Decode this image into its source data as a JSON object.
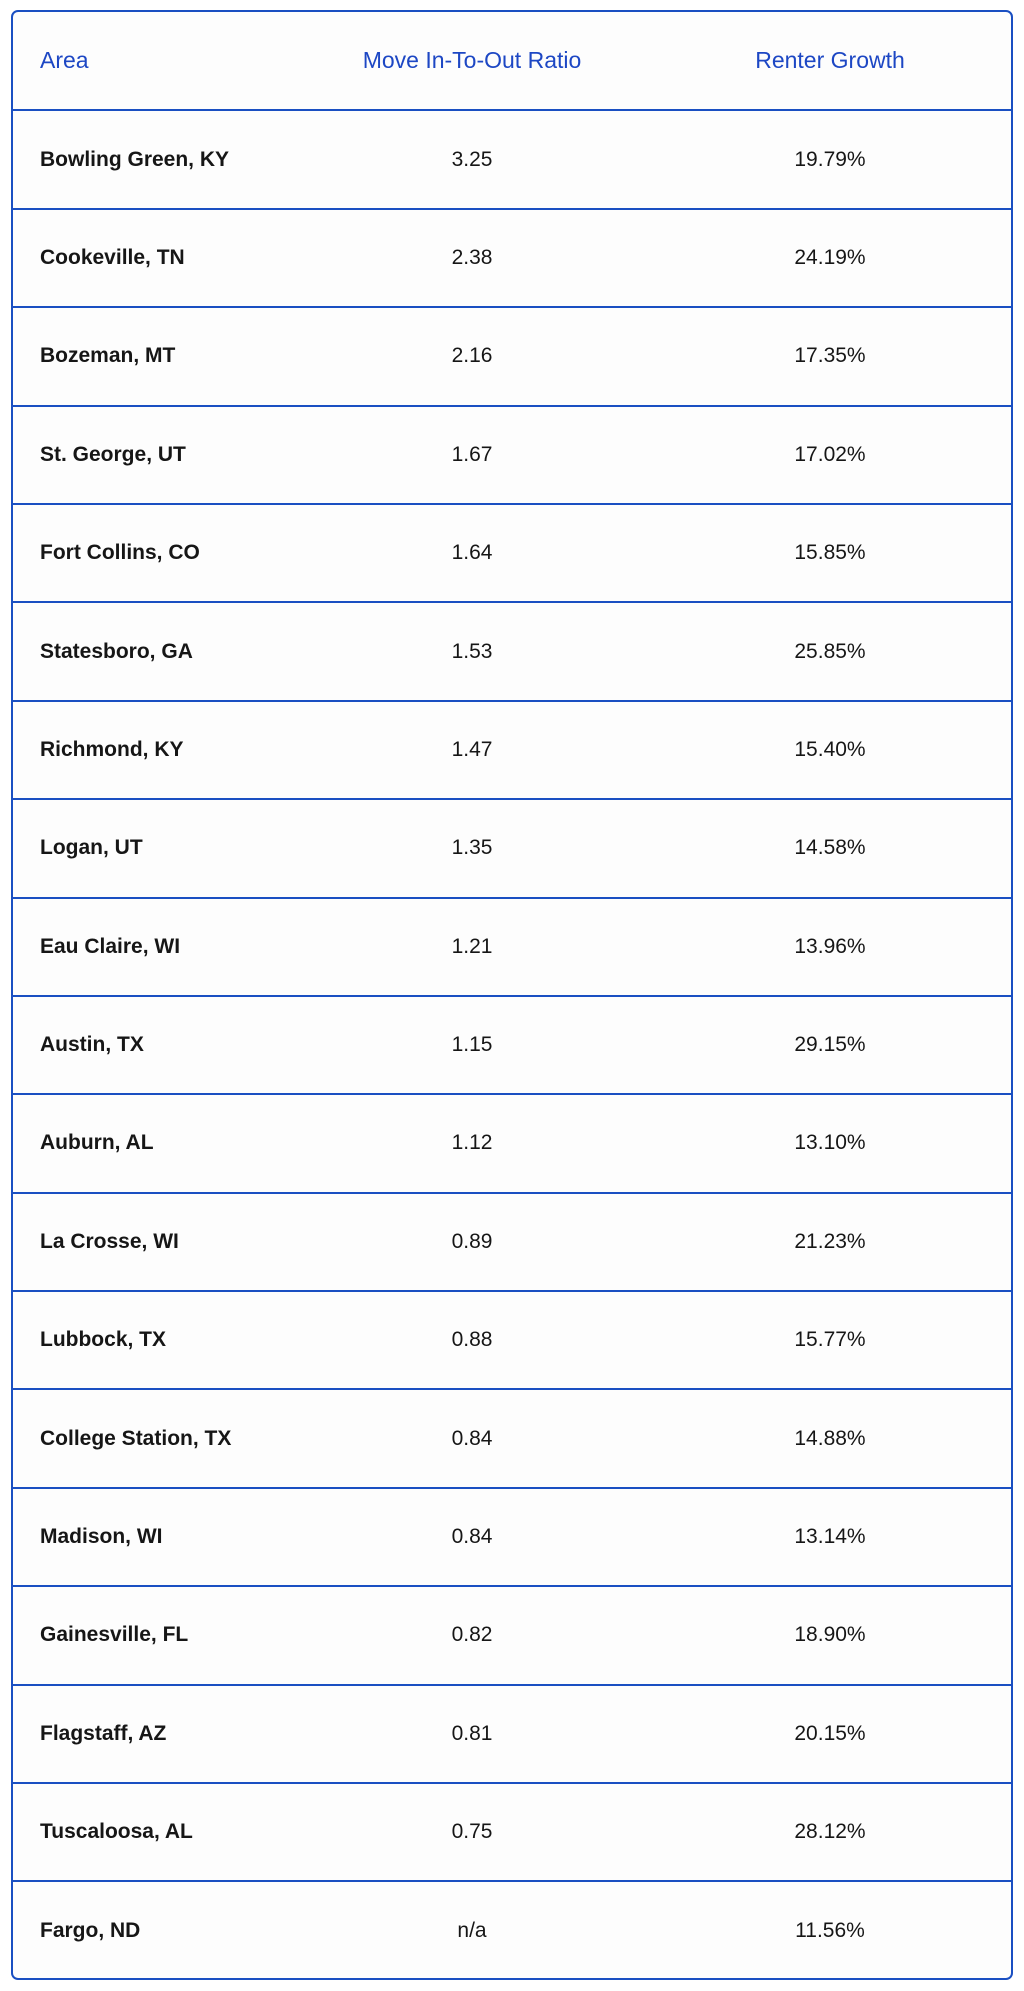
{
  "table": {
    "headers": {
      "area": "Area",
      "ratio": "Move In-To-Out Ratio",
      "growth": "Renter Growth"
    },
    "rows": [
      {
        "area": "Bowling Green, KY",
        "ratio": "3.25",
        "growth": "19.79%"
      },
      {
        "area": "Cookeville, TN",
        "ratio": "2.38",
        "growth": "24.19%"
      },
      {
        "area": "Bozeman, MT",
        "ratio": "2.16",
        "growth": "17.35%"
      },
      {
        "area": "St. George, UT",
        "ratio": "1.67",
        "growth": "17.02%"
      },
      {
        "area": "Fort Collins, CO",
        "ratio": "1.64",
        "growth": "15.85%"
      },
      {
        "area": "Statesboro, GA",
        "ratio": "1.53",
        "growth": "25.85%"
      },
      {
        "area": "Richmond, KY",
        "ratio": "1.47",
        "growth": "15.40%"
      },
      {
        "area": "Logan, UT",
        "ratio": "1.35",
        "growth": "14.58%"
      },
      {
        "area": "Eau Claire, WI",
        "ratio": "1.21",
        "growth": "13.96%"
      },
      {
        "area": "Austin, TX",
        "ratio": "1.15",
        "growth": "29.15%"
      },
      {
        "area": "Auburn, AL",
        "ratio": "1.12",
        "growth": "13.10%"
      },
      {
        "area": "La Crosse, WI",
        "ratio": "0.89",
        "growth": "21.23%"
      },
      {
        "area": "Lubbock, TX",
        "ratio": "0.88",
        "growth": "15.77%"
      },
      {
        "area": "College Station, TX",
        "ratio": "0.84",
        "growth": "14.88%"
      },
      {
        "area": "Madison, WI",
        "ratio": "0.84",
        "growth": "13.14%"
      },
      {
        "area": "Gainesville, FL",
        "ratio": "0.82",
        "growth": "18.90%"
      },
      {
        "area": "Flagstaff, AZ",
        "ratio": "0.81",
        "growth": "20.15%"
      },
      {
        "area": "Tuscaloosa, AL",
        "ratio": "0.75",
        "growth": "28.12%"
      },
      {
        "area": "Fargo, ND",
        "ratio": "n/a",
        "growth": "11.56%"
      }
    ]
  },
  "colors": {
    "accent": "#1a4fc2",
    "header_text": "#1d47c4",
    "body_text": "#161616"
  }
}
